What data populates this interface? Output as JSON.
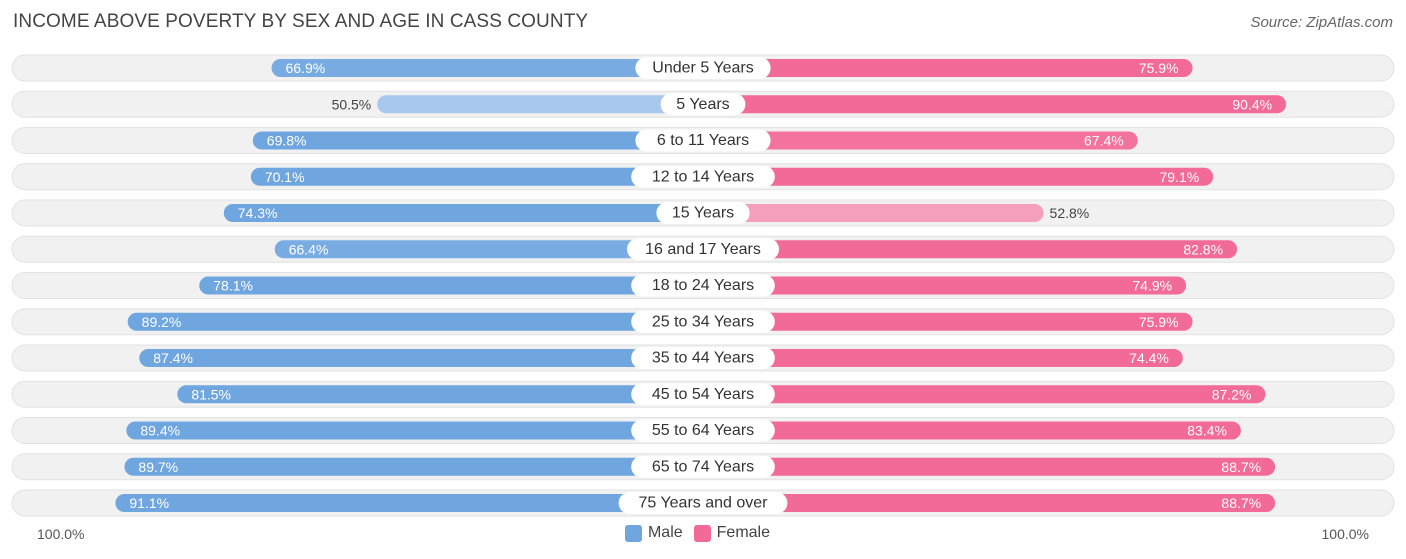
{
  "header": {
    "title": "INCOME ABOVE POVERTY BY SEX AND AGE IN CASS COUNTY",
    "source": "Source: ZipAtlas.com"
  },
  "axis": {
    "left_label": "100.0%",
    "right_label": "100.0%"
  },
  "legend": {
    "male_label": "Male",
    "female_label": "Female"
  },
  "colors": {
    "male_strong": "#6fa6e0",
    "male_light": "#a9c9ee",
    "female_strong": "#f26b98",
    "female_light": "#f7a8c3",
    "track": "#f1f1f1",
    "track_border": "#e2e2e2"
  },
  "chart_data": {
    "type": "bar",
    "orientation": "horizontal-diverging",
    "title": "INCOME ABOVE POVERTY BY SEX AND AGE IN CASS COUNTY",
    "xlim": [
      0,
      100
    ],
    "unit": "%",
    "categories": [
      "Under 5 Years",
      "5 Years",
      "6 to 11 Years",
      "12 to 14 Years",
      "15 Years",
      "16 and 17 Years",
      "18 to 24 Years",
      "25 to 34 Years",
      "35 to 44 Years",
      "45 to 54 Years",
      "55 to 64 Years",
      "65 to 74 Years",
      "75 Years and over"
    ],
    "series": [
      {
        "name": "Male",
        "values": [
          66.9,
          50.5,
          69.8,
          70.1,
          74.3,
          66.4,
          78.1,
          89.2,
          87.4,
          81.5,
          89.4,
          89.7,
          91.1
        ],
        "labels": [
          "66.9%",
          "50.5%",
          "69.8%",
          "70.1%",
          "74.3%",
          "66.4%",
          "78.1%",
          "89.2%",
          "87.4%",
          "81.5%",
          "89.4%",
          "89.7%",
          "91.1%"
        ]
      },
      {
        "name": "Female",
        "values": [
          75.9,
          90.4,
          67.4,
          79.1,
          52.8,
          82.8,
          74.9,
          75.9,
          74.4,
          87.2,
          83.4,
          88.7,
          88.7
        ],
        "labels": [
          "75.9%",
          "90.4%",
          "67.4%",
          "79.1%",
          "52.8%",
          "82.8%",
          "74.9%",
          "75.9%",
          "74.4%",
          "87.2%",
          "83.4%",
          "88.7%",
          "88.7%"
        ]
      }
    ],
    "legend_position": "bottom-center"
  }
}
